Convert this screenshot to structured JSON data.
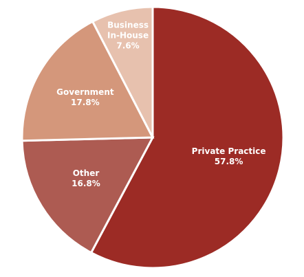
{
  "chart_data": {
    "type": "pie",
    "categories": [
      "Private Practice",
      "Other",
      "Government",
      "Business\nIn-House"
    ],
    "values": [
      57.8,
      16.8,
      17.8,
      7.6
    ],
    "value_labels": [
      "57.8%",
      "16.8%",
      "17.8%",
      "7.6%"
    ],
    "colors": [
      "#9c2b25",
      "#ad5b52",
      "#d4977b",
      "#e7c1ae"
    ]
  }
}
